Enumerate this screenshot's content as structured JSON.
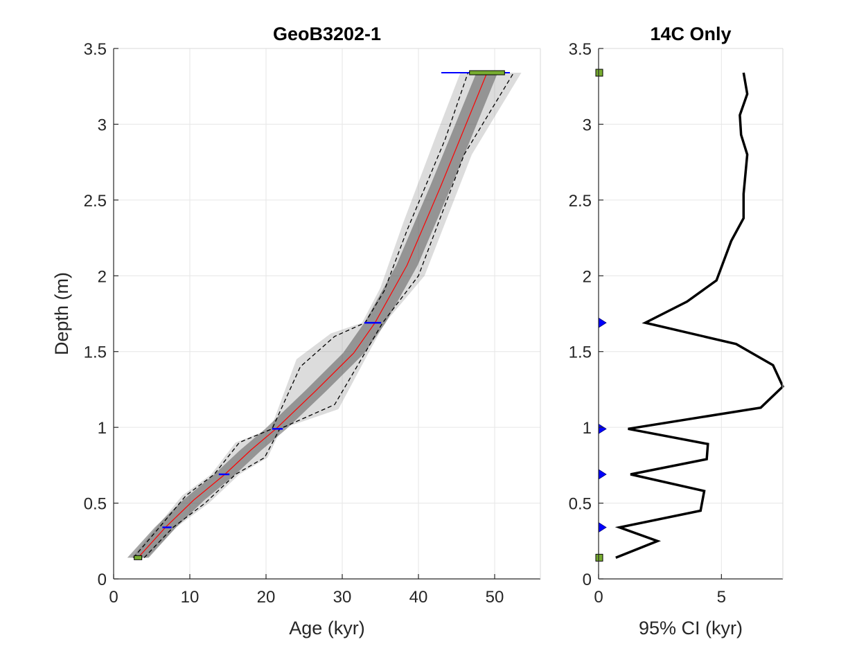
{
  "chart_data": [
    {
      "type": "line",
      "title": "GeoB3202-1",
      "xlabel": "Age (kyr)",
      "ylabel": "Depth (m)",
      "xlim": [
        0,
        56
      ],
      "ylim": [
        0,
        3.5
      ],
      "xticks": [
        0,
        10,
        20,
        30,
        40,
        50
      ],
      "yticks": [
        0,
        0.5,
        1,
        1.5,
        2,
        2.5,
        3,
        3.5
      ],
      "xtick_labels": [
        "0",
        "10",
        "20",
        "30",
        "40",
        "50"
      ],
      "ytick_labels": [
        "0",
        "0.5",
        "1",
        "1.5",
        "2",
        "2.5",
        "3",
        "3.5"
      ],
      "grid": true,
      "y_reversed": false,
      "series": [
        {
          "role": "median",
          "color": "#ff0000",
          "x": [
            3.2,
            6.8,
            10.5,
            14.6,
            18.0,
            21.3,
            26.5,
            31.5,
            34.3,
            38.5,
            43.0,
            49.0
          ],
          "y": [
            0.14,
            0.34,
            0.52,
            0.69,
            0.85,
            0.99,
            1.24,
            1.49,
            1.69,
            2.07,
            2.6,
            3.34
          ]
        },
        {
          "role": "upper 95% bound",
          "style": "dashed",
          "color": "#000000",
          "x": [
            2.6,
            6.0,
            9.5,
            13.2,
            16.5,
            20.8,
            24.5,
            29.0,
            33.0,
            35.5,
            38.5,
            43.5,
            46.5
          ],
          "y": [
            0.14,
            0.34,
            0.55,
            0.69,
            0.9,
            0.99,
            1.4,
            1.6,
            1.69,
            1.9,
            2.3,
            2.9,
            3.34
          ]
        },
        {
          "role": "lower 95% bound",
          "style": "dashed",
          "color": "#000000",
          "x": [
            4.0,
            7.8,
            12.0,
            16.0,
            19.8,
            21.8,
            29.0,
            32.5,
            35.3,
            40.0,
            46.0,
            52.5
          ],
          "y": [
            0.14,
            0.34,
            0.5,
            0.69,
            0.8,
            0.99,
            1.15,
            1.45,
            1.69,
            2.0,
            2.8,
            3.34
          ]
        }
      ],
      "ensemble_band": {
        "color": "#808080",
        "lower_x": [
          2.4,
          5.6,
          9.0,
          12.8,
          16.0,
          20.6,
          24.0,
          28.5,
          32.6,
          35.0,
          38.0,
          42.5,
          45.5
        ],
        "lower_y": [
          0.14,
          0.34,
          0.55,
          0.69,
          0.9,
          0.99,
          1.45,
          1.62,
          1.69,
          1.92,
          2.35,
          2.95,
          3.34
        ],
        "upper_x": [
          4.4,
          8.2,
          12.5,
          16.5,
          20.2,
          22.0,
          29.5,
          33.0,
          35.6,
          40.8,
          47.0,
          53.5
        ],
        "upper_y": [
          0.14,
          0.34,
          0.5,
          0.69,
          0.8,
          0.99,
          1.12,
          1.45,
          1.69,
          2.0,
          2.8,
          3.34
        ]
      },
      "dates": [
        {
          "depth": 0.14,
          "age": 3.2,
          "err": 0.5,
          "kind": "other"
        },
        {
          "depth": 0.34,
          "age": 7.0,
          "err": 0.6,
          "kind": "14C"
        },
        {
          "depth": 0.69,
          "age": 14.5,
          "err": 0.7,
          "kind": "14C"
        },
        {
          "depth": 0.99,
          "age": 21.5,
          "err": 0.7,
          "kind": "14C"
        },
        {
          "depth": 1.69,
          "age": 34.0,
          "err": 1.1,
          "kind": "14C"
        },
        {
          "depth": 3.34,
          "age": 49.0,
          "err": 2.3,
          "kind": "other",
          "blue_whisker": [
            43.0,
            52.0
          ]
        }
      ]
    },
    {
      "type": "line",
      "title": "14C Only",
      "xlabel": "95% CI (kyr)",
      "ylabel": "",
      "xlim": [
        0,
        7.5
      ],
      "ylim": [
        0,
        3.5
      ],
      "xticks": [
        0,
        5
      ],
      "yticks": [
        0,
        0.5,
        1,
        1.5,
        2,
        2.5,
        3,
        3.5
      ],
      "xtick_labels": [
        "0",
        "5"
      ],
      "ytick_labels": [
        "0",
        "0.5",
        "1",
        "1.5",
        "2",
        "2.5",
        "3",
        "3.5"
      ],
      "grid": true,
      "series": [
        {
          "role": "95% CI width",
          "color": "#000000",
          "x": [
            0.7,
            2.4,
            0.85,
            4.15,
            4.3,
            1.3,
            4.4,
            4.45,
            1.2,
            6.6,
            7.5,
            7.1,
            5.6,
            1.9,
            3.6,
            4.8,
            5.4,
            5.9,
            5.9,
            6.05,
            5.8,
            5.75,
            6.05,
            5.9
          ],
          "y": [
            0.14,
            0.25,
            0.34,
            0.45,
            0.58,
            0.69,
            0.79,
            0.89,
            0.99,
            1.13,
            1.27,
            1.41,
            1.55,
            1.69,
            1.83,
            1.97,
            2.23,
            2.38,
            2.54,
            2.8,
            2.93,
            3.06,
            3.2,
            3.34
          ]
        }
      ],
      "markers": [
        {
          "depth": 0.14,
          "kind": "other"
        },
        {
          "depth": 0.34,
          "kind": "14C"
        },
        {
          "depth": 0.69,
          "kind": "14C"
        },
        {
          "depth": 0.99,
          "kind": "14C"
        },
        {
          "depth": 1.69,
          "kind": "14C"
        },
        {
          "depth": 3.34,
          "kind": "other"
        }
      ]
    }
  ],
  "colors": {
    "date_14c": "#0000ff",
    "date_other_fill": "#77ac30",
    "grid": "#e6e6e6",
    "axis": "#262626"
  }
}
